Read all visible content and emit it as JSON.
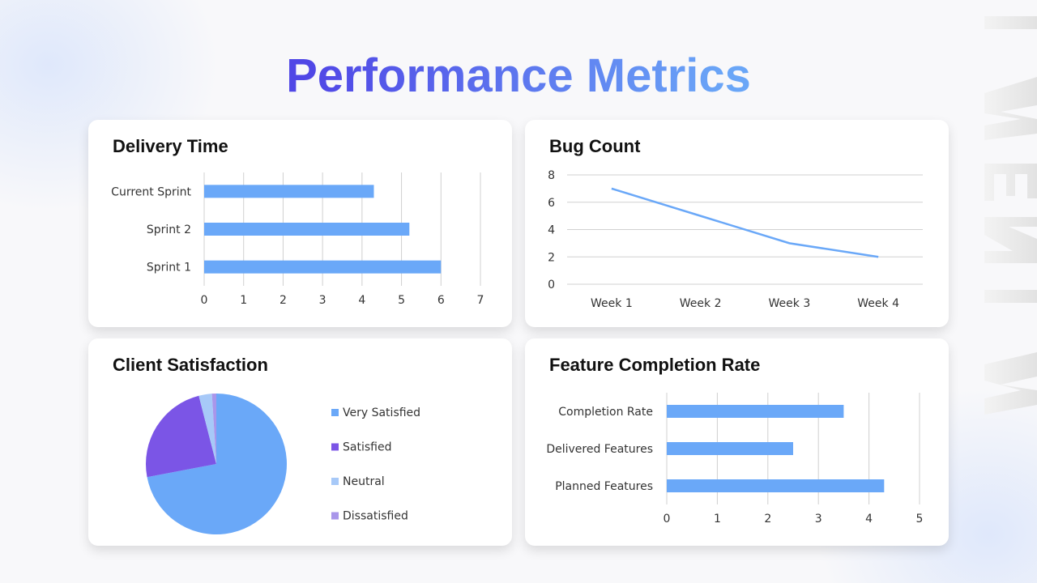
{
  "title": "Performance Metrics",
  "colors": {
    "bar": "#6aa8f8",
    "line": "#6aa8f8",
    "grid": "#d0d0d0",
    "pie": [
      "#6aa8f8",
      "#7b55e6",
      "#a7c9f8",
      "#a996ea"
    ]
  },
  "chart_data": [
    {
      "type": "bar",
      "orientation": "horizontal",
      "title": "Delivery Time",
      "categories": [
        "Current Sprint",
        "Sprint 2",
        "Sprint 1"
      ],
      "values": [
        4.3,
        5.2,
        6
      ],
      "xlim": [
        0,
        7
      ],
      "ticks": [
        0,
        1,
        2,
        3,
        4,
        5,
        6,
        7
      ],
      "grid": true
    },
    {
      "type": "line",
      "title": "Bug Count",
      "categories": [
        "Week 1",
        "Week 2",
        "Week 3",
        "Week 4"
      ],
      "values": [
        7,
        5,
        3,
        2
      ],
      "ylim": [
        0,
        8
      ],
      "ticks": [
        0,
        2,
        4,
        6,
        8
      ],
      "grid": true
    },
    {
      "type": "pie",
      "title": "Client Satisfaction",
      "categories": [
        "Very Satisfied",
        "Satisfied",
        "Neutral",
        "Dissatisfied"
      ],
      "values": [
        72,
        24,
        3,
        1
      ],
      "legend": "right"
    },
    {
      "type": "bar",
      "orientation": "horizontal",
      "title": "Feature Completion Rate",
      "categories": [
        "Completion Rate",
        "Delivered Features",
        "Planned Features"
      ],
      "values": [
        3.5,
        2.5,
        4.3
      ],
      "xlim": [
        0,
        5
      ],
      "ticks": [
        0,
        1,
        2,
        3,
        4,
        5
      ],
      "grid": true
    }
  ]
}
